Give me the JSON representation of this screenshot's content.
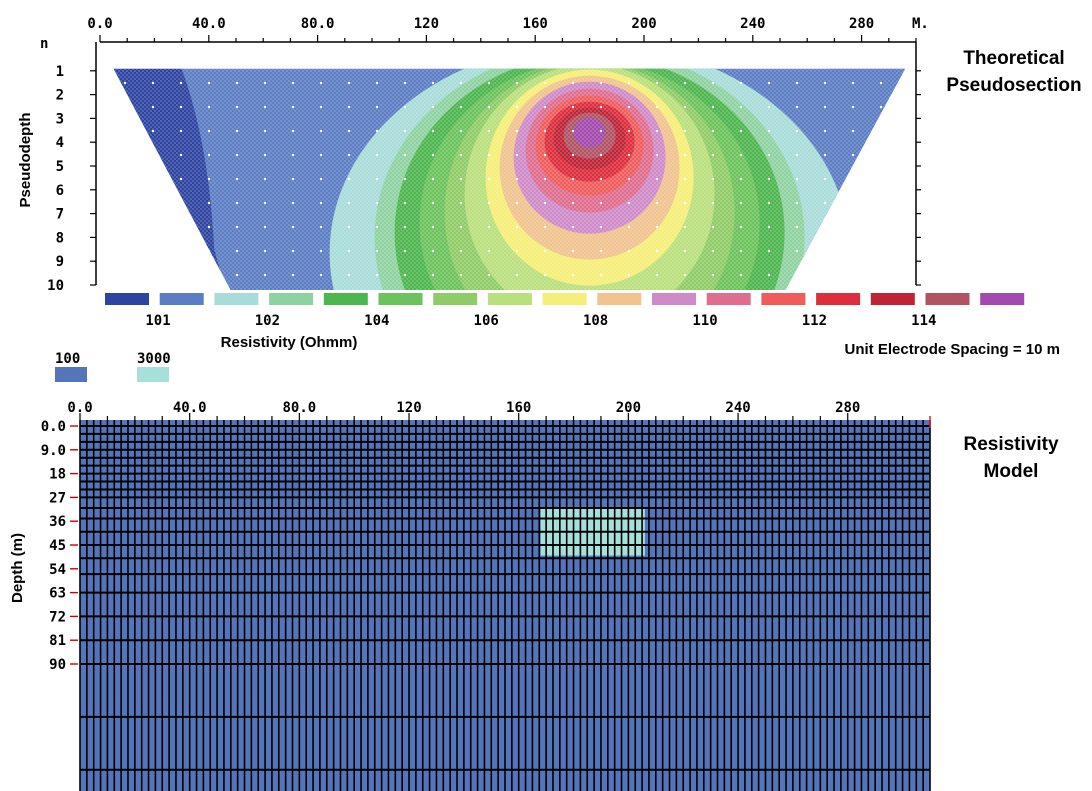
{
  "colors": {
    "background": "#73ADA8",
    "outline": "#000000",
    "model_body": "#5575BB",
    "model_block": "#A6E0DB"
  },
  "pseudosection": {
    "type": "heatmap",
    "title": "Theoretical Pseudosection",
    "ylabel": "Pseudodepth",
    "y_header": "n",
    "x_unit": "M.",
    "x_ticks": [
      "0.0",
      "40.0",
      "80.0",
      "120",
      "160",
      "200",
      "240",
      "280"
    ],
    "x_tick_values": [
      0,
      40,
      80,
      120,
      160,
      200,
      240,
      280
    ],
    "xlim": [
      0,
      300
    ],
    "y_ticks": [
      "1",
      "2",
      "3",
      "4",
      "5",
      "6",
      "7",
      "8",
      "9",
      "10"
    ],
    "y_tick_values": [
      1,
      2,
      3,
      4,
      5,
      6,
      7,
      8,
      9,
      10
    ],
    "ylim": [
      0,
      10
    ],
    "anomaly_center": {
      "x": 180,
      "n": 3.6
    }
  },
  "legend": {
    "title": "Resistivity (Ohmm)",
    "labels": [
      "101",
      "102",
      "104",
      "106",
      "108",
      "110",
      "112",
      "114"
    ],
    "label_values": [
      101,
      102,
      104,
      106,
      108,
      110,
      112,
      114
    ],
    "colors": [
      "#2E44A0",
      "#5C7DC4",
      "#A8DCD8",
      "#8FD2A2",
      "#4EB64E",
      "#6CC25C",
      "#8FCC68",
      "#B9E07C",
      "#F5EE78",
      "#F1C38E",
      "#CF8BC8",
      "#DF6E8E",
      "#EE5C5C",
      "#DC2E3C",
      "#BE2436",
      "#B05464",
      "#A24AAE"
    ],
    "spacing_note": "Unit Electrode Spacing = 10 m"
  },
  "model_legend": {
    "labels": [
      "100",
      "3000"
    ],
    "colors": [
      "#5575BB",
      "#A6E0DB"
    ]
  },
  "model": {
    "type": "heatmap",
    "title": "Resistivity Model",
    "ylabel": "Depth (m)",
    "x_ticks": [
      "0.0",
      "40.0",
      "80.0",
      "120",
      "160",
      "200",
      "240",
      "280"
    ],
    "x_tick_values": [
      0,
      40,
      80,
      120,
      160,
      200,
      240,
      280
    ],
    "xlim": [
      0,
      310
    ],
    "y_ticks": [
      "0.0",
      "9.0",
      "18",
      "27",
      "36",
      "45",
      "54",
      "63",
      "72",
      "81",
      "90"
    ],
    "y_tick_values": [
      0,
      9,
      18,
      27,
      36,
      45,
      54,
      63,
      72,
      81,
      90
    ],
    "background_resistivity": 100,
    "block": {
      "resistivity": 3000,
      "x_range": [
        168,
        206
      ],
      "depth_range": [
        31,
        49
      ]
    }
  }
}
